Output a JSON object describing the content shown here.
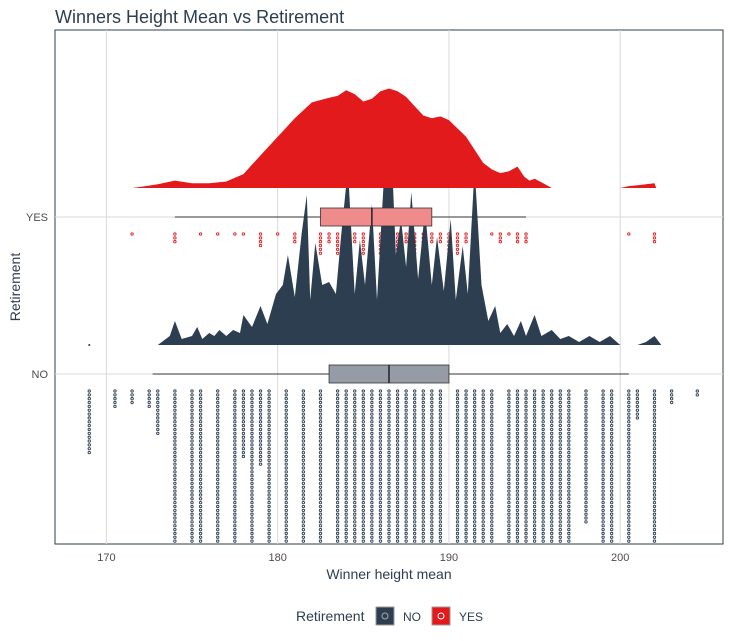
{
  "chart_data": {
    "type": "raincloud",
    "title": "Winners Height Mean vs Retirement",
    "xlabel": "Winner height mean",
    "ylabel": "Retirement",
    "xlim": [
      167,
      206
    ],
    "x_ticks": [
      170,
      180,
      190,
      200
    ],
    "categories": [
      "NO",
      "YES"
    ],
    "grid": true,
    "legend": {
      "title": "Retirement",
      "position": "bottom",
      "entries": [
        {
          "label": "NO",
          "color": "#2c3e50"
        },
        {
          "label": "YES",
          "color": "#e31a1c"
        }
      ]
    },
    "series": [
      {
        "name": "NO",
        "color": "#2c3e50",
        "box": {
          "whisker_low": 172.7,
          "q1": 183.0,
          "median": 186.5,
          "q3": 190.0,
          "whisker_high": 200.5
        },
        "outliers": [
          169.0
        ],
        "density": [
          [
            173.0,
            0.0
          ],
          [
            173.7,
            0.03
          ],
          [
            174.0,
            0.08
          ],
          [
            174.4,
            0.02
          ],
          [
            175.0,
            0.03
          ],
          [
            175.3,
            0.06
          ],
          [
            175.6,
            0.02
          ],
          [
            176.0,
            0.04
          ],
          [
            176.3,
            0.03
          ],
          [
            176.6,
            0.05
          ],
          [
            177.0,
            0.03
          ],
          [
            177.4,
            0.05
          ],
          [
            177.8,
            0.04
          ],
          [
            178.0,
            0.1
          ],
          [
            178.5,
            0.06
          ],
          [
            179.0,
            0.13
          ],
          [
            179.4,
            0.07
          ],
          [
            179.9,
            0.17
          ],
          [
            180.3,
            0.2
          ],
          [
            180.6,
            0.3
          ],
          [
            181.0,
            0.16
          ],
          [
            181.4,
            0.37
          ],
          [
            181.7,
            0.5
          ],
          [
            181.9,
            0.15
          ],
          [
            182.2,
            0.34
          ],
          [
            182.6,
            0.2
          ],
          [
            183.0,
            0.21
          ],
          [
            183.4,
            0.17
          ],
          [
            183.7,
            0.36
          ],
          [
            184.1,
            0.59
          ],
          [
            184.5,
            0.17
          ],
          [
            184.8,
            0.35
          ],
          [
            185.1,
            0.2
          ],
          [
            185.5,
            0.47
          ],
          [
            185.8,
            0.15
          ],
          [
            186.1,
            0.45
          ],
          [
            186.5,
            0.85
          ],
          [
            186.9,
            0.3
          ],
          [
            187.2,
            0.42
          ],
          [
            187.5,
            0.26
          ],
          [
            187.8,
            0.51
          ],
          [
            188.2,
            0.22
          ],
          [
            188.6,
            0.45
          ],
          [
            189.0,
            0.2
          ],
          [
            189.3,
            0.36
          ],
          [
            189.7,
            0.18
          ],
          [
            190.1,
            0.42
          ],
          [
            190.4,
            0.15
          ],
          [
            190.8,
            0.33
          ],
          [
            191.1,
            0.17
          ],
          [
            191.5,
            0.59
          ],
          [
            191.9,
            0.2
          ],
          [
            192.3,
            0.08
          ],
          [
            192.7,
            0.13
          ],
          [
            193.0,
            0.04
          ],
          [
            193.4,
            0.07
          ],
          [
            193.8,
            0.03
          ],
          [
            194.2,
            0.08
          ],
          [
            194.5,
            0.03
          ],
          [
            195.0,
            0.1
          ],
          [
            195.4,
            0.03
          ],
          [
            196.0,
            0.05
          ],
          [
            196.5,
            0.02
          ],
          [
            197.0,
            0.03
          ],
          [
            197.6,
            0.01
          ],
          [
            198.2,
            0.03
          ],
          [
            198.8,
            0.01
          ],
          [
            199.4,
            0.03
          ],
          [
            200.0,
            0.0
          ],
          [
            200.5,
            0.0
          ],
          [
            201.0,
            0.0
          ],
          [
            201.5,
            0.01
          ],
          [
            202.0,
            0.03
          ],
          [
            202.4,
            0.0
          ]
        ],
        "dot_columns": [
          [
            169.0,
            17
          ],
          [
            170.5,
            5
          ],
          [
            171.5,
            4
          ],
          [
            172.5,
            5
          ],
          [
            173.0,
            12
          ],
          [
            174.0,
            40
          ],
          [
            175.0,
            40
          ],
          [
            175.5,
            40
          ],
          [
            176.5,
            40
          ],
          [
            177.5,
            40
          ],
          [
            178.0,
            18
          ],
          [
            178.5,
            40
          ],
          [
            179.0,
            20
          ],
          [
            179.5,
            40
          ],
          [
            180.5,
            40
          ],
          [
            181.5,
            40
          ],
          [
            182.5,
            40
          ],
          [
            183.5,
            40
          ],
          [
            184.0,
            40
          ],
          [
            184.5,
            40
          ],
          [
            185.0,
            40
          ],
          [
            185.5,
            40
          ],
          [
            186.0,
            40
          ],
          [
            186.5,
            40
          ],
          [
            187.0,
            40
          ],
          [
            187.5,
            40
          ],
          [
            188.0,
            40
          ],
          [
            188.5,
            40
          ],
          [
            189.0,
            40
          ],
          [
            189.5,
            40
          ],
          [
            190.5,
            40
          ],
          [
            191.0,
            40
          ],
          [
            191.5,
            40
          ],
          [
            192.0,
            40
          ],
          [
            192.5,
            40
          ],
          [
            193.5,
            40
          ],
          [
            194.0,
            40
          ],
          [
            194.5,
            40
          ],
          [
            195.0,
            40
          ],
          [
            195.5,
            40
          ],
          [
            196.0,
            40
          ],
          [
            196.5,
            40
          ],
          [
            197.0,
            40
          ],
          [
            198.0,
            35
          ],
          [
            199.0,
            40
          ],
          [
            199.5,
            40
          ],
          [
            200.5,
            40
          ],
          [
            201.0,
            8
          ],
          [
            202.0,
            40
          ],
          [
            203.0,
            4
          ],
          [
            204.5,
            2
          ]
        ]
      },
      {
        "name": "YES",
        "color": "#e31a1c",
        "box": {
          "whisker_low": 174.0,
          "q1": 182.5,
          "median": 185.5,
          "q3": 189.0,
          "whisker_high": 194.5
        },
        "outliers": [],
        "density": [
          [
            171.5,
            0.0
          ],
          [
            172.3,
            0.02
          ],
          [
            173.0,
            0.04
          ],
          [
            174.0,
            0.08
          ],
          [
            175.0,
            0.05
          ],
          [
            176.0,
            0.05
          ],
          [
            177.0,
            0.07
          ],
          [
            178.0,
            0.15
          ],
          [
            179.0,
            0.35
          ],
          [
            180.0,
            0.55
          ],
          [
            181.0,
            0.75
          ],
          [
            182.0,
            0.92
          ],
          [
            183.0,
            0.97
          ],
          [
            183.5,
            0.99
          ],
          [
            184.0,
            1.05
          ],
          [
            184.5,
            1.01
          ],
          [
            185.0,
            0.93
          ],
          [
            185.5,
            0.96
          ],
          [
            186.0,
            1.04
          ],
          [
            186.5,
            1.07
          ],
          [
            187.0,
            1.04
          ],
          [
            187.5,
            0.98
          ],
          [
            188.0,
            0.88
          ],
          [
            188.5,
            0.78
          ],
          [
            189.0,
            0.75
          ],
          [
            189.5,
            0.77
          ],
          [
            190.0,
            0.73
          ],
          [
            191.0,
            0.55
          ],
          [
            192.0,
            0.27
          ],
          [
            192.5,
            0.2
          ],
          [
            193.0,
            0.16
          ],
          [
            193.5,
            0.18
          ],
          [
            194.0,
            0.23
          ],
          [
            194.4,
            0.12
          ],
          [
            194.7,
            0.08
          ],
          [
            195.0,
            0.1
          ],
          [
            195.5,
            0.05
          ],
          [
            196.0,
            0.0
          ],
          [
            200.0,
            0.0
          ],
          [
            200.5,
            0.02
          ],
          [
            201.0,
            0.03
          ],
          [
            202.0,
            0.05
          ],
          [
            202.1,
            0.0
          ]
        ],
        "dot_columns": [
          [
            171.5,
            1
          ],
          [
            174.0,
            3
          ],
          [
            175.5,
            1
          ],
          [
            176.5,
            1
          ],
          [
            177.5,
            1
          ],
          [
            178.0,
            1
          ],
          [
            179.0,
            4
          ],
          [
            180.0,
            1
          ],
          [
            181.0,
            3
          ],
          [
            181.5,
            6
          ],
          [
            182.5,
            6
          ],
          [
            183.0,
            3
          ],
          [
            183.5,
            6
          ],
          [
            184.0,
            6
          ],
          [
            184.5,
            3
          ],
          [
            185.0,
            6
          ],
          [
            185.5,
            6
          ],
          [
            186.0,
            6
          ],
          [
            186.5,
            10
          ],
          [
            187.0,
            6
          ],
          [
            187.5,
            3
          ],
          [
            188.0,
            6
          ],
          [
            188.5,
            6
          ],
          [
            189.0,
            3
          ],
          [
            189.5,
            3
          ],
          [
            190.0,
            6
          ],
          [
            190.5,
            6
          ],
          [
            191.0,
            3
          ],
          [
            191.5,
            6
          ],
          [
            192.5,
            1
          ],
          [
            193.0,
            3
          ],
          [
            193.5,
            1
          ],
          [
            194.0,
            3
          ],
          [
            194.5,
            3
          ],
          [
            200.5,
            1
          ],
          [
            202.0,
            3
          ]
        ]
      }
    ]
  }
}
